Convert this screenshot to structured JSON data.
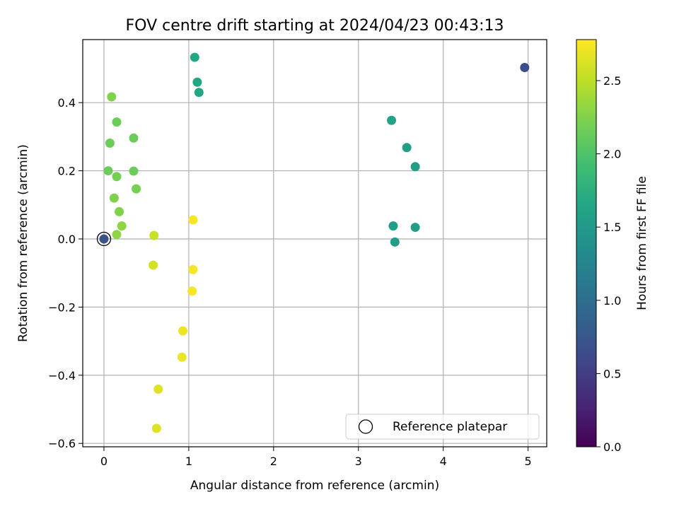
{
  "chart_data": {
    "type": "scatter",
    "title": "FOV centre drift starting at 2024/04/23 00:43:13",
    "xlabel": "Angular distance from reference (arcmin)",
    "ylabel": "Rotation from reference (arcmin)",
    "xlim": [
      -0.25,
      5.22
    ],
    "ylim": [
      -0.61,
      0.585
    ],
    "xticks": [
      0,
      1,
      2,
      3,
      4,
      5
    ],
    "xtick_labels": [
      "0",
      "1",
      "2",
      "3",
      "4",
      "5"
    ],
    "yticks": [
      -0.6,
      -0.4,
      -0.2,
      0.0,
      0.2,
      0.4
    ],
    "ytick_labels": [
      "−0.6",
      "−0.4",
      "−0.2",
      "0.0",
      "0.2",
      "0.4"
    ],
    "grid": true,
    "colorbar": {
      "label": "Hours from first FF file",
      "colormap": "viridis",
      "range": [
        0.0,
        2.78
      ],
      "ticks": [
        0.0,
        0.5,
        1.0,
        1.5,
        2.0,
        2.5
      ],
      "tick_labels": [
        "0.0",
        "0.5",
        "1.0",
        "1.5",
        "2.0",
        "2.5"
      ]
    },
    "legend": {
      "placement": "lower-right",
      "entries": [
        "Reference platepar"
      ]
    },
    "reference_point": {
      "x": 0.0,
      "y": 0.0,
      "label": "Reference platepar"
    },
    "points": [
      {
        "x": 0.0,
        "y": 0.0,
        "hours": 0.72
      },
      {
        "x": 4.96,
        "y": 0.503,
        "hours": 0.65
      },
      {
        "x": 3.39,
        "y": 0.348,
        "hours": 1.6
      },
      {
        "x": 3.57,
        "y": 0.268,
        "hours": 1.55
      },
      {
        "x": 3.67,
        "y": 0.212,
        "hours": 1.55
      },
      {
        "x": 3.41,
        "y": 0.038,
        "hours": 1.55
      },
      {
        "x": 3.67,
        "y": 0.034,
        "hours": 1.55
      },
      {
        "x": 3.43,
        "y": -0.009,
        "hours": 1.55
      },
      {
        "x": 1.07,
        "y": 0.533,
        "hours": 1.65
      },
      {
        "x": 1.1,
        "y": 0.46,
        "hours": 1.65
      },
      {
        "x": 1.12,
        "y": 0.43,
        "hours": 1.65
      },
      {
        "x": 0.09,
        "y": 0.417,
        "hours": 2.25
      },
      {
        "x": 0.15,
        "y": 0.343,
        "hours": 2.15
      },
      {
        "x": 0.35,
        "y": 0.296,
        "hours": 2.15
      },
      {
        "x": 0.07,
        "y": 0.281,
        "hours": 2.15
      },
      {
        "x": 0.05,
        "y": 0.2,
        "hours": 2.15
      },
      {
        "x": 0.35,
        "y": 0.199,
        "hours": 2.15
      },
      {
        "x": 0.15,
        "y": 0.183,
        "hours": 2.2
      },
      {
        "x": 0.38,
        "y": 0.147,
        "hours": 2.2
      },
      {
        "x": 0.12,
        "y": 0.12,
        "hours": 2.25
      },
      {
        "x": 0.18,
        "y": 0.08,
        "hours": 2.25
      },
      {
        "x": 0.21,
        "y": 0.038,
        "hours": 2.3
      },
      {
        "x": 0.15,
        "y": 0.013,
        "hours": 2.3
      },
      {
        "x": 0.59,
        "y": 0.01,
        "hours": 2.55
      },
      {
        "x": 1.05,
        "y": 0.056,
        "hours": 2.75
      },
      {
        "x": 0.58,
        "y": -0.077,
        "hours": 2.6
      },
      {
        "x": 1.05,
        "y": -0.09,
        "hours": 2.75
      },
      {
        "x": 1.04,
        "y": -0.153,
        "hours": 2.75
      },
      {
        "x": 0.93,
        "y": -0.27,
        "hours": 2.7
      },
      {
        "x": 0.92,
        "y": -0.347,
        "hours": 2.7
      },
      {
        "x": 0.64,
        "y": -0.441,
        "hours": 2.65
      },
      {
        "x": 0.62,
        "y": -0.556,
        "hours": 2.65
      }
    ]
  }
}
